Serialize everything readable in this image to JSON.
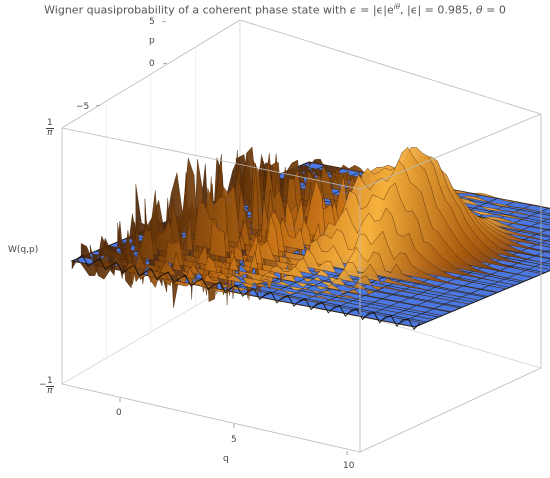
{
  "chart_data": {
    "type": "surface3d",
    "title": {
      "prefix": "Wigner quasiprobability of a coherent phase state with ",
      "eps": "ϵ",
      "eq1": " = |ϵ|e",
      "exp": "iθ",
      "mag": ", |ϵ| = 0.985, ",
      "theta": "θ",
      "eq2": " = 0"
    },
    "axes": {
      "x": {
        "label": "q",
        "ticks": [
          "0",
          "5",
          "10"
        ],
        "range": [
          -2.5,
          10.5
        ]
      },
      "y": {
        "label": "p",
        "ticks": [
          "−5",
          "0",
          "5"
        ],
        "range": [
          -8,
          6
        ]
      },
      "z": {
        "label": "W(q,p)",
        "range": [
          -0.318,
          0.318
        ],
        "top_tick": {
          "num": "1",
          "den": "π"
        },
        "bottom_tick": {
          "sign": "−",
          "num": "1",
          "den": "π"
        }
      }
    },
    "parameters": {
      "epsilon_abs": 0.985,
      "theta": 0
    },
    "colors": {
      "plane": "#4a78e0",
      "surface_dark": "#4a2405",
      "surface_mid": "#b86210",
      "surface_light": "#f7b03a",
      "box": "#b9b9b9",
      "grid": "#222222"
    }
  }
}
